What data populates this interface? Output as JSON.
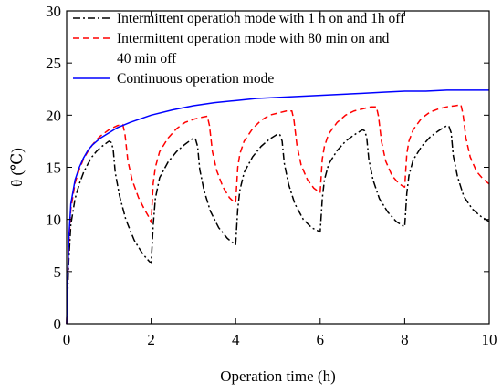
{
  "chart_data": {
    "type": "line",
    "xlabel": "Operation time (h)",
    "ylabel": "θ (℃)",
    "xlim": [
      0,
      10
    ],
    "ylim": [
      0,
      30
    ],
    "xticks": [
      0,
      2,
      4,
      6,
      8,
      10
    ],
    "yticks": [
      0,
      5,
      10,
      15,
      20,
      25,
      30
    ],
    "grid": false,
    "legend_position": "top-left",
    "series": [
      {
        "name": "Intermittent operation mode with 1 h on and 1h off",
        "style": "dash-dot",
        "color": "#000000",
        "x": [
          0,
          0.05,
          0.1,
          0.2,
          0.3,
          0.4,
          0.5,
          0.6,
          0.7,
          0.8,
          0.9,
          1.0,
          1.05,
          1.1,
          1.15,
          1.25,
          1.4,
          1.6,
          1.8,
          1.95,
          2.0,
          2.05,
          2.1,
          2.2,
          2.4,
          2.6,
          2.8,
          3.0,
          3.05,
          3.1,
          3.15,
          3.25,
          3.4,
          3.6,
          3.8,
          3.95,
          4.0,
          4.05,
          4.1,
          4.2,
          4.4,
          4.6,
          4.8,
          5.0,
          5.05,
          5.1,
          5.15,
          5.25,
          5.4,
          5.6,
          5.8,
          5.95,
          6.0,
          6.05,
          6.1,
          6.2,
          6.4,
          6.6,
          6.8,
          7.0,
          7.05,
          7.1,
          7.15,
          7.25,
          7.4,
          7.6,
          7.8,
          7.95,
          8.0,
          8.05,
          8.1,
          8.2,
          8.4,
          8.6,
          8.8,
          9.0,
          9.05,
          9.1,
          9.15,
          9.25,
          9.4,
          9.6,
          9.8,
          10.0
        ],
        "y": [
          0,
          6.0,
          9.5,
          12.0,
          13.4,
          14.5,
          15.3,
          16.0,
          16.5,
          16.9,
          17.2,
          17.5,
          17.4,
          16.8,
          14.5,
          12.3,
          10.0,
          8.0,
          6.7,
          6.0,
          5.8,
          9.5,
          12.0,
          14.0,
          15.5,
          16.5,
          17.2,
          17.8,
          17.7,
          17.0,
          14.8,
          12.8,
          10.8,
          9.2,
          8.2,
          7.7,
          7.6,
          11.0,
          12.8,
          14.5,
          16.0,
          17.0,
          17.7,
          18.2,
          18.1,
          17.5,
          15.4,
          13.4,
          11.5,
          10.0,
          9.2,
          8.9,
          8.8,
          12.0,
          13.8,
          15.3,
          16.6,
          17.5,
          18.1,
          18.6,
          18.5,
          17.9,
          15.8,
          13.8,
          12.0,
          10.7,
          9.8,
          9.4,
          9.3,
          12.5,
          14.2,
          15.7,
          17.0,
          17.9,
          18.5,
          19.0,
          18.9,
          18.3,
          16.1,
          14.1,
          12.2,
          11.0,
          10.3,
          9.8
        ]
      },
      {
        "name": "Intermittent operation mode with 80 min on and 40 min off",
        "style": "dashed",
        "color": "#ff0000",
        "x": [
          0,
          0.05,
          0.1,
          0.2,
          0.3,
          0.4,
          0.5,
          0.6,
          0.7,
          0.8,
          0.9,
          1.0,
          1.1,
          1.2,
          1.33,
          1.38,
          1.45,
          1.55,
          1.7,
          1.85,
          1.95,
          2.0,
          2.05,
          2.1,
          2.2,
          2.4,
          2.6,
          2.8,
          3.0,
          3.2,
          3.33,
          3.38,
          3.45,
          3.55,
          3.7,
          3.85,
          3.95,
          4.0,
          4.05,
          4.1,
          4.2,
          4.4,
          4.6,
          4.8,
          5.0,
          5.2,
          5.33,
          5.38,
          5.45,
          5.55,
          5.7,
          5.85,
          5.95,
          6.0,
          6.05,
          6.1,
          6.2,
          6.4,
          6.6,
          6.8,
          7.0,
          7.2,
          7.33,
          7.38,
          7.45,
          7.55,
          7.7,
          7.85,
          7.95,
          8.0,
          8.05,
          8.1,
          8.2,
          8.4,
          8.6,
          8.8,
          9.0,
          9.2,
          9.33,
          9.38,
          9.45,
          9.55,
          9.7,
          9.85,
          10.0
        ],
        "y": [
          0,
          7.5,
          11.0,
          13.5,
          14.8,
          15.8,
          16.5,
          17.1,
          17.6,
          18.0,
          18.3,
          18.6,
          18.8,
          19.0,
          19.1,
          18.2,
          15.6,
          13.8,
          12.1,
          10.9,
          10.2,
          9.7,
          13.5,
          15.0,
          16.5,
          17.8,
          18.7,
          19.3,
          19.6,
          19.8,
          19.9,
          19.0,
          16.5,
          14.7,
          13.1,
          12.1,
          11.7,
          11.6,
          15.0,
          16.3,
          17.5,
          18.7,
          19.5,
          20.0,
          20.2,
          20.4,
          20.4,
          19.5,
          17.1,
          15.2,
          13.8,
          13.0,
          12.7,
          12.6,
          15.8,
          17.0,
          18.2,
          19.3,
          20.0,
          20.4,
          20.6,
          20.8,
          20.8,
          19.9,
          17.5,
          15.6,
          14.2,
          13.5,
          13.2,
          13.1,
          16.3,
          17.5,
          18.6,
          19.7,
          20.3,
          20.6,
          20.8,
          20.9,
          21.0,
          20.1,
          17.8,
          16.0,
          14.6,
          13.9,
          13.4
        ]
      },
      {
        "name": "Continuous operation mode",
        "style": "solid",
        "color": "#0000ff",
        "x": [
          0,
          0.05,
          0.1,
          0.2,
          0.3,
          0.4,
          0.5,
          0.6,
          0.8,
          1.0,
          1.2,
          1.5,
          2.0,
          2.5,
          3.0,
          3.5,
          4.0,
          4.5,
          5.0,
          5.5,
          6.0,
          6.5,
          7.0,
          7.5,
          8.0,
          8.5,
          9.0,
          9.5,
          10.0
        ],
        "y": [
          0,
          8.0,
          11.5,
          13.8,
          15.0,
          15.9,
          16.6,
          17.1,
          17.8,
          18.3,
          18.8,
          19.3,
          20.0,
          20.5,
          20.9,
          21.2,
          21.4,
          21.6,
          21.7,
          21.8,
          21.9,
          22.0,
          22.1,
          22.2,
          22.3,
          22.3,
          22.4,
          22.4,
          22.4
        ]
      }
    ],
    "legend": {
      "entries": [
        {
          "lines": [
            "Intermittent operation mode with 1 h on and 1h off"
          ]
        },
        {
          "lines": [
            "Intermittent operation mode with 80 min on and",
            "40 min off"
          ]
        },
        {
          "lines": [
            "Continuous operation mode"
          ]
        }
      ]
    }
  }
}
